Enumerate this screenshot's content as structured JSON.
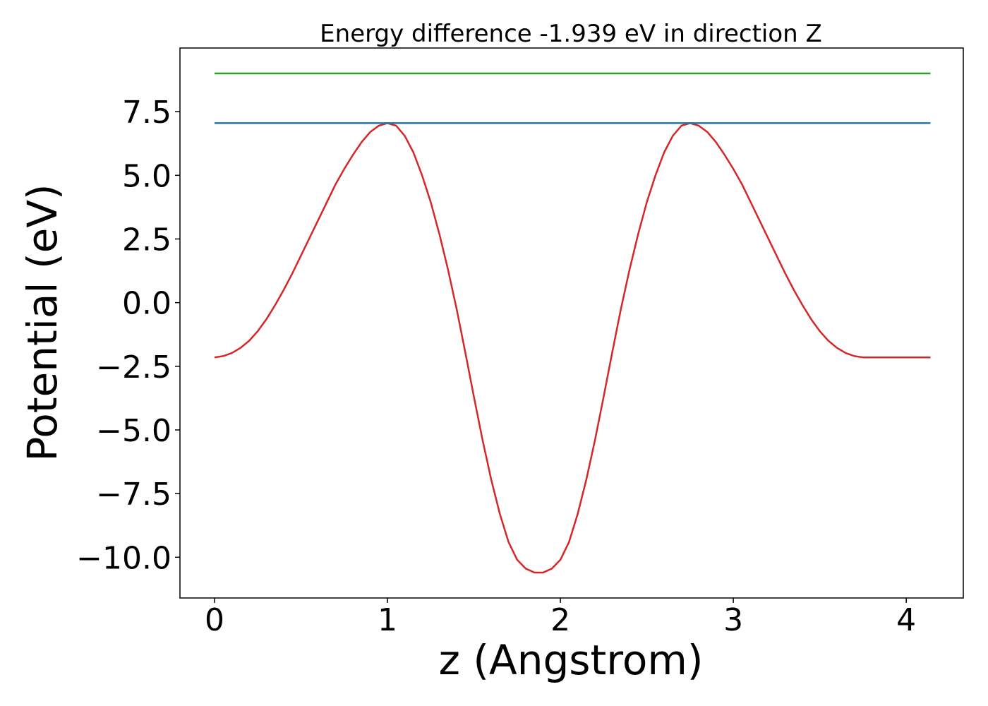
{
  "chart_data": {
    "type": "line",
    "title": "Energy difference -1.939 eV in direction Z",
    "xlabel": "z (Angstrom)",
    "ylabel": "Potential (eV)",
    "xlim": [
      -0.2,
      4.33
    ],
    "ylim": [
      -11.6,
      10.0
    ],
    "xticks": [
      0,
      1,
      2,
      3,
      4
    ],
    "xtick_labels": [
      "0",
      "1",
      "2",
      "3",
      "4"
    ],
    "yticks": [
      -10.0,
      -7.5,
      -5.0,
      -2.5,
      0.0,
      2.5,
      5.0,
      7.5
    ],
    "ytick_labels": [
      "−10.0",
      "−7.5",
      "−5.0",
      "−2.5",
      "0.0",
      "2.5",
      "5.0",
      "7.5"
    ],
    "grid": false,
    "series": [
      {
        "color": "#d62728",
        "x": [
          0.0,
          0.05,
          0.1,
          0.15,
          0.2,
          0.25,
          0.3,
          0.35,
          0.4,
          0.45,
          0.5,
          0.55,
          0.6,
          0.65,
          0.7,
          0.75,
          0.8,
          0.85,
          0.9,
          0.95,
          1.0,
          1.05,
          1.1,
          1.15,
          1.2,
          1.25,
          1.3,
          1.35,
          1.4,
          1.45,
          1.5,
          1.55,
          1.6,
          1.65,
          1.7,
          1.75,
          1.8,
          1.85,
          1.9,
          1.95,
          2.0,
          2.05,
          2.1,
          2.15,
          2.2,
          2.25,
          2.3,
          2.35,
          2.4,
          2.45,
          2.5,
          2.55,
          2.6,
          2.65,
          2.7,
          2.75,
          2.8,
          2.85,
          2.9,
          2.95,
          3.0,
          3.05,
          3.1,
          3.15,
          3.2,
          3.25,
          3.3,
          3.35,
          3.4,
          3.45,
          3.5,
          3.55,
          3.6,
          3.65,
          3.7,
          3.75,
          3.8,
          3.85,
          3.9,
          3.95,
          4.0,
          4.05,
          4.1,
          4.14
        ],
        "y": [
          -2.15,
          -2.1,
          -1.98,
          -1.78,
          -1.5,
          -1.12,
          -0.65,
          -0.1,
          0.5,
          1.15,
          1.85,
          2.55,
          3.25,
          3.95,
          4.65,
          5.25,
          5.8,
          6.3,
          6.7,
          6.95,
          7.05,
          6.95,
          6.55,
          5.9,
          5.0,
          3.95,
          2.7,
          1.3,
          -0.25,
          -1.95,
          -3.7,
          -5.4,
          -6.95,
          -8.3,
          -9.4,
          -10.1,
          -10.45,
          -10.6,
          -10.6,
          -10.45,
          -10.1,
          -9.4,
          -8.3,
          -6.95,
          -5.4,
          -3.7,
          -1.95,
          -0.25,
          1.3,
          2.7,
          3.95,
          5.0,
          5.9,
          6.55,
          6.95,
          7.05,
          6.95,
          6.7,
          6.3,
          5.8,
          5.25,
          4.65,
          3.95,
          3.25,
          2.55,
          1.85,
          1.15,
          0.5,
          -0.1,
          -0.65,
          -1.12,
          -1.5,
          -1.78,
          -1.98,
          -2.1,
          -2.15,
          -2.15,
          -2.15,
          -2.15,
          -2.15,
          -2.15,
          -2.15,
          -2.15,
          -2.15
        ]
      },
      {
        "color": "#1f77b4",
        "x": [
          0.0,
          4.14
        ],
        "y": [
          7.05,
          7.05
        ]
      },
      {
        "color": "#2ca02c",
        "x": [
          0.0,
          4.14
        ],
        "y": [
          9.0,
          9.0
        ]
      }
    ]
  }
}
